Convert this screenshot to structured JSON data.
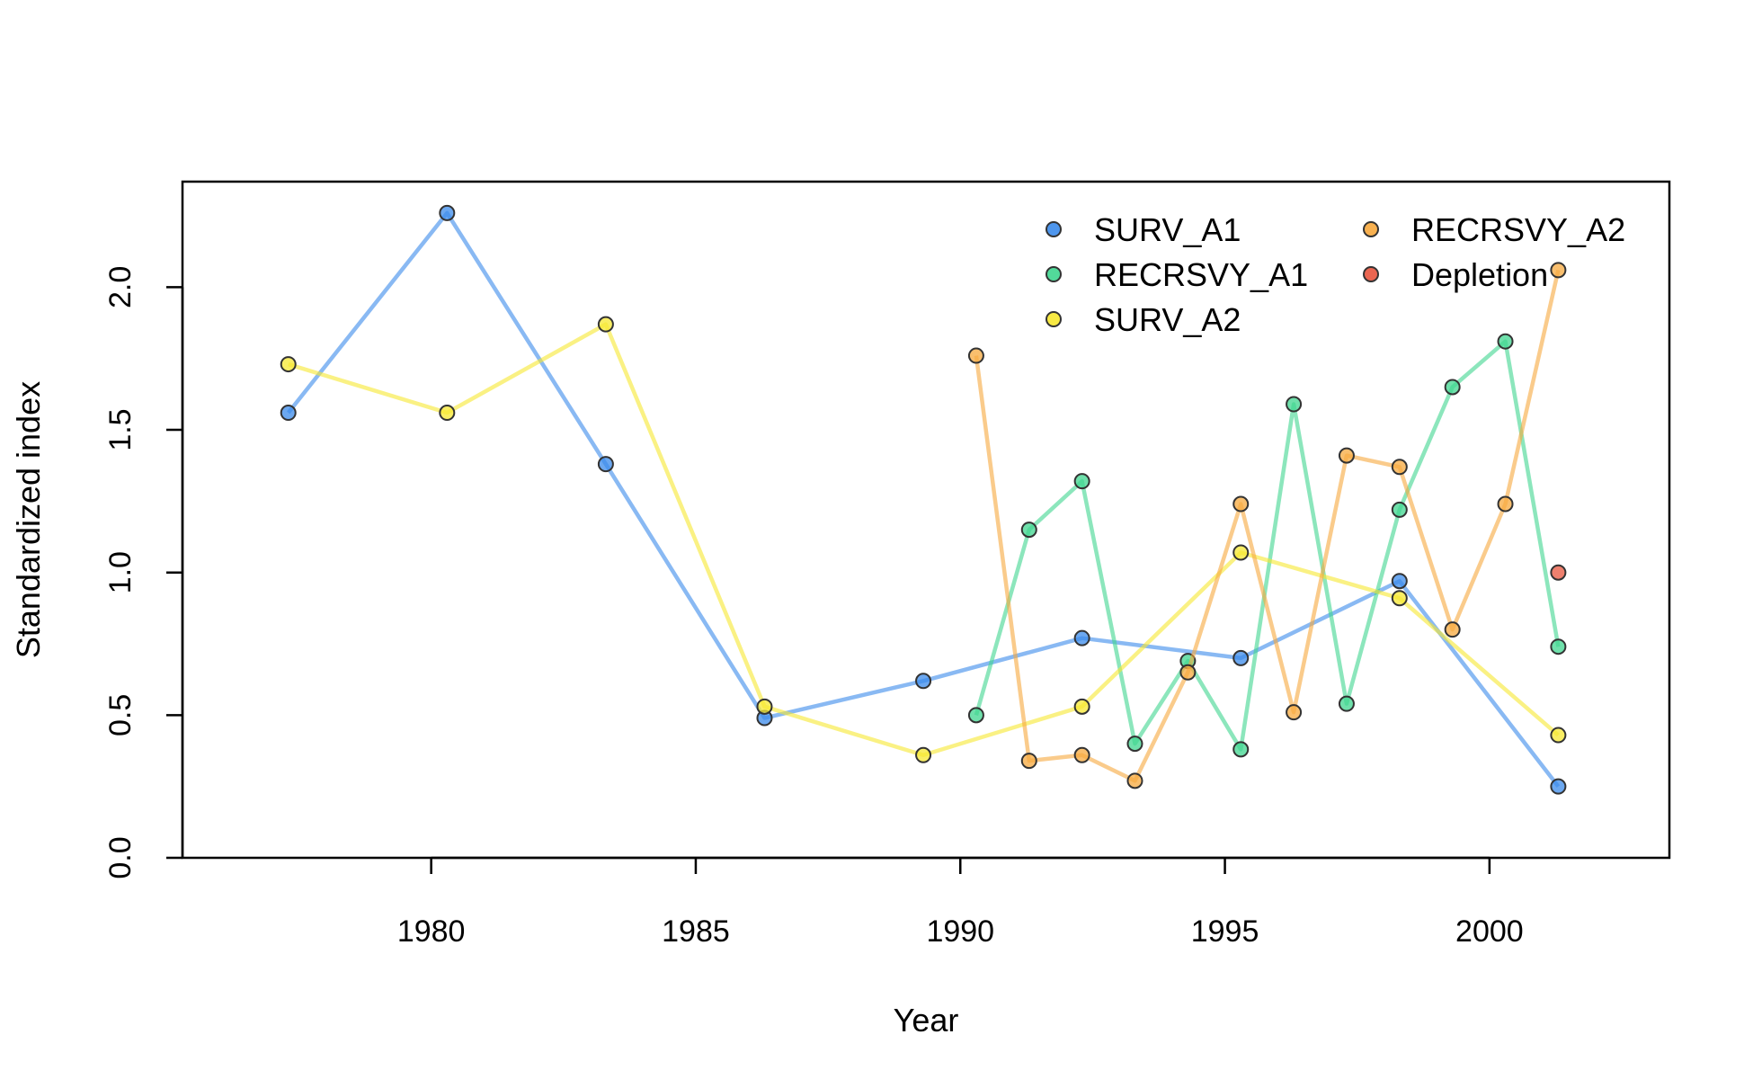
{
  "chart_data": {
    "type": "line",
    "title": "",
    "xlabel": "Year",
    "ylabel": "Standardized index",
    "xlim": [
      1975.3,
      2003.4
    ],
    "ylim": [
      0,
      2.37
    ],
    "x_ticks": [
      1980,
      1985,
      1990,
      1995,
      2000
    ],
    "y_ticks": [
      0.0,
      0.5,
      1.0,
      1.5,
      2.0
    ],
    "y_tick_labels": [
      "0.0",
      "0.5",
      "1.0",
      "1.5",
      "2.0"
    ],
    "grid": false,
    "legend_position": "top-right",
    "series": [
      {
        "name": "SURV_A1",
        "color": "#3b8beb",
        "x": [
          1977.3,
          1980.3,
          1983.3,
          1986.3,
          1989.3,
          1992.3,
          1995.3,
          1998.3,
          2001.3
        ],
        "y": [
          1.56,
          2.26,
          1.38,
          0.49,
          0.62,
          0.77,
          0.7,
          0.97,
          0.25
        ]
      },
      {
        "name": "RECRSVY_A1",
        "color": "#3fd68f",
        "x": [
          1990.3,
          1991.3,
          1992.3,
          1993.3,
          1994.3,
          1995.3,
          1996.3,
          1997.3,
          1998.3,
          1999.3,
          2000.3,
          2001.3
        ],
        "y": [
          0.5,
          1.15,
          1.32,
          0.4,
          0.69,
          0.38,
          1.59,
          0.54,
          1.22,
          1.65,
          1.81,
          0.74
        ]
      },
      {
        "name": "SURV_A2",
        "color": "#f7e830",
        "x": [
          1977.3,
          1980.3,
          1983.3,
          1986.3,
          1989.3,
          1992.3,
          1995.3,
          1998.3,
          2001.3
        ],
        "y": [
          1.73,
          1.56,
          1.87,
          0.53,
          0.36,
          0.53,
          1.07,
          0.91,
          0.43
        ]
      },
      {
        "name": "RECRSVY_A2",
        "color": "#f7a93d",
        "x": [
          1990.3,
          1991.3,
          1992.3,
          1993.3,
          1994.3,
          1995.3,
          1996.3,
          1997.3,
          1998.3,
          1999.3,
          2000.3,
          2001.3
        ],
        "y": [
          1.76,
          0.34,
          0.36,
          0.27,
          0.65,
          1.24,
          0.51,
          1.41,
          1.37,
          0.8,
          1.24,
          2.06
        ]
      },
      {
        "name": "Depletion",
        "color": "#e8553e",
        "x": [
          2001.3
        ],
        "y": [
          1.0
        ]
      }
    ]
  }
}
